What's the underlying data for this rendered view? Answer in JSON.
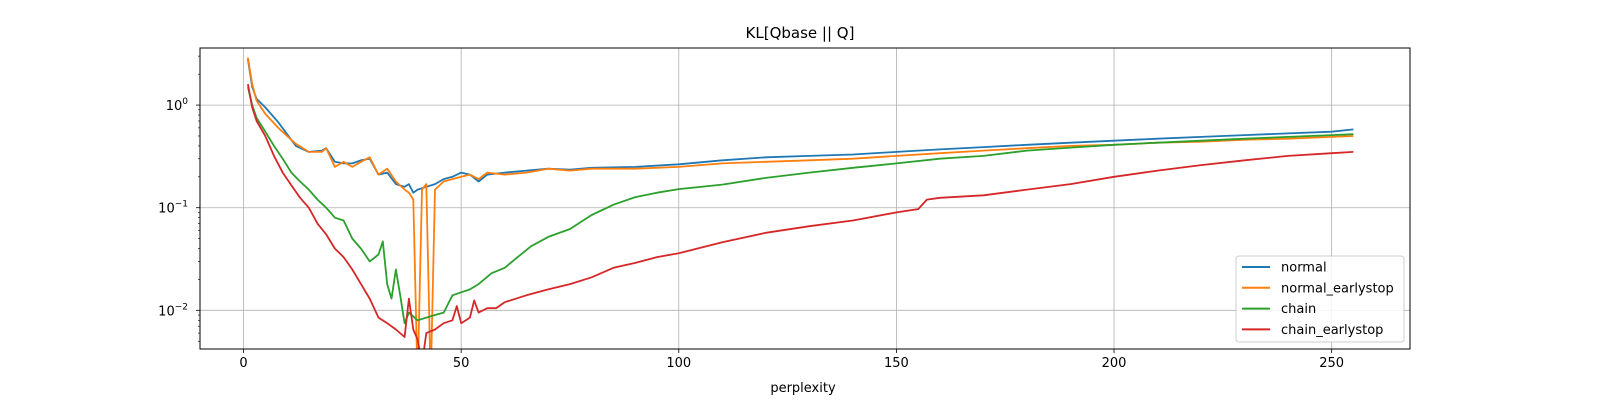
{
  "chart_data": {
    "type": "line",
    "title": "KL[Qbase || Q]",
    "xlabel": "perplexity",
    "ylabel": "",
    "xlim": [
      -10,
      268
    ],
    "ylim": [
      0.0042,
      3.6
    ],
    "yscale": "log",
    "xticks": [
      0,
      50,
      100,
      150,
      200,
      250
    ],
    "yticks": [
      {
        "value": 0.01,
        "base": "10",
        "exp": "−2"
      },
      {
        "value": 0.1,
        "base": "10",
        "exp": "−1"
      },
      {
        "value": 1,
        "base": "10",
        "exp": "0"
      }
    ],
    "grid": true,
    "legend_position": "lower-right",
    "series": [
      {
        "name": "normal",
        "color": "#1f77b4",
        "points": [
          [
            1,
            2.8
          ],
          [
            2,
            1.5
          ],
          [
            3,
            1.15
          ],
          [
            5,
            0.95
          ],
          [
            8,
            0.68
          ],
          [
            10,
            0.52
          ],
          [
            12,
            0.4
          ],
          [
            15,
            0.35
          ],
          [
            18,
            0.36
          ],
          [
            19,
            0.38
          ],
          [
            21,
            0.28
          ],
          [
            23,
            0.27
          ],
          [
            25,
            0.27
          ],
          [
            27,
            0.29
          ],
          [
            29,
            0.3
          ],
          [
            31,
            0.21
          ],
          [
            33,
            0.22
          ],
          [
            35,
            0.17
          ],
          [
            37,
            0.16
          ],
          [
            38,
            0.17
          ],
          [
            39,
            0.14
          ],
          [
            40,
            0.15
          ],
          [
            42,
            0.16
          ],
          [
            44,
            0.17
          ],
          [
            46,
            0.19
          ],
          [
            48,
            0.2
          ],
          [
            50,
            0.22
          ],
          [
            52,
            0.21
          ],
          [
            54,
            0.18
          ],
          [
            56,
            0.21
          ],
          [
            60,
            0.22
          ],
          [
            65,
            0.23
          ],
          [
            70,
            0.24
          ],
          [
            75,
            0.235
          ],
          [
            80,
            0.245
          ],
          [
            90,
            0.25
          ],
          [
            100,
            0.265
          ],
          [
            110,
            0.29
          ],
          [
            120,
            0.31
          ],
          [
            130,
            0.32
          ],
          [
            140,
            0.33
          ],
          [
            150,
            0.35
          ],
          [
            160,
            0.37
          ],
          [
            170,
            0.39
          ],
          [
            180,
            0.41
          ],
          [
            190,
            0.43
          ],
          [
            200,
            0.45
          ],
          [
            210,
            0.47
          ],
          [
            220,
            0.49
          ],
          [
            230,
            0.51
          ],
          [
            240,
            0.53
          ],
          [
            250,
            0.55
          ],
          [
            255,
            0.58
          ]
        ]
      },
      {
        "name": "normal_earlystop",
        "color": "#ff7f0e",
        "points": [
          [
            1,
            2.9
          ],
          [
            2,
            1.6
          ],
          [
            3,
            1.1
          ],
          [
            5,
            0.82
          ],
          [
            8,
            0.6
          ],
          [
            10,
            0.5
          ],
          [
            12,
            0.42
          ],
          [
            15,
            0.35
          ],
          [
            18,
            0.35
          ],
          [
            19,
            0.38
          ],
          [
            21,
            0.25
          ],
          [
            23,
            0.28
          ],
          [
            25,
            0.25
          ],
          [
            27,
            0.28
          ],
          [
            29,
            0.31
          ],
          [
            31,
            0.21
          ],
          [
            33,
            0.24
          ],
          [
            35,
            0.18
          ],
          [
            37,
            0.15
          ],
          [
            38,
            0.14
          ],
          [
            39,
            0.12
          ],
          [
            40,
            0.002
          ],
          [
            41,
            0.15
          ],
          [
            42,
            0.17
          ],
          [
            43,
            0.002
          ],
          [
            44,
            0.15
          ],
          [
            46,
            0.18
          ],
          [
            48,
            0.19
          ],
          [
            50,
            0.2
          ],
          [
            52,
            0.21
          ],
          [
            54,
            0.19
          ],
          [
            56,
            0.22
          ],
          [
            60,
            0.21
          ],
          [
            65,
            0.22
          ],
          [
            70,
            0.24
          ],
          [
            75,
            0.23
          ],
          [
            80,
            0.24
          ],
          [
            90,
            0.24
          ],
          [
            100,
            0.25
          ],
          [
            110,
            0.27
          ],
          [
            120,
            0.28
          ],
          [
            130,
            0.29
          ],
          [
            140,
            0.3
          ],
          [
            150,
            0.32
          ],
          [
            160,
            0.34
          ],
          [
            170,
            0.36
          ],
          [
            180,
            0.38
          ],
          [
            190,
            0.4
          ],
          [
            200,
            0.41
          ],
          [
            210,
            0.43
          ],
          [
            220,
            0.44
          ],
          [
            230,
            0.46
          ],
          [
            240,
            0.47
          ],
          [
            250,
            0.49
          ],
          [
            255,
            0.5
          ]
        ]
      },
      {
        "name": "chain",
        "color": "#2ca02c",
        "points": [
          [
            1,
            1.5
          ],
          [
            2,
            1.0
          ],
          [
            3,
            0.75
          ],
          [
            5,
            0.55
          ],
          [
            7,
            0.4
          ],
          [
            9,
            0.3
          ],
          [
            11,
            0.22
          ],
          [
            13,
            0.18
          ],
          [
            15,
            0.15
          ],
          [
            17,
            0.12
          ],
          [
            19,
            0.1
          ],
          [
            21,
            0.08
          ],
          [
            23,
            0.075
          ],
          [
            25,
            0.05
          ],
          [
            27,
            0.04
          ],
          [
            29,
            0.03
          ],
          [
            31,
            0.035
          ],
          [
            32,
            0.047
          ],
          [
            33,
            0.018
          ],
          [
            34,
            0.013
          ],
          [
            35,
            0.025
          ],
          [
            36,
            0.014
          ],
          [
            37,
            0.0075
          ],
          [
            38,
            0.0095
          ],
          [
            40,
            0.008
          ],
          [
            42,
            0.0085
          ],
          [
            44,
            0.009
          ],
          [
            46,
            0.0095
          ],
          [
            48,
            0.014
          ],
          [
            50,
            0.015
          ],
          [
            52,
            0.016
          ],
          [
            54,
            0.018
          ],
          [
            57,
            0.023
          ],
          [
            60,
            0.026
          ],
          [
            63,
            0.033
          ],
          [
            66,
            0.042
          ],
          [
            70,
            0.052
          ],
          [
            75,
            0.062
          ],
          [
            80,
            0.085
          ],
          [
            85,
            0.107
          ],
          [
            90,
            0.127
          ],
          [
            95,
            0.14
          ],
          [
            100,
            0.152
          ],
          [
            110,
            0.168
          ],
          [
            120,
            0.195
          ],
          [
            130,
            0.22
          ],
          [
            140,
            0.245
          ],
          [
            150,
            0.27
          ],
          [
            160,
            0.3
          ],
          [
            170,
            0.32
          ],
          [
            180,
            0.36
          ],
          [
            190,
            0.385
          ],
          [
            200,
            0.41
          ],
          [
            210,
            0.43
          ],
          [
            220,
            0.45
          ],
          [
            230,
            0.47
          ],
          [
            240,
            0.49
          ],
          [
            250,
            0.51
          ],
          [
            255,
            0.52
          ]
        ]
      },
      {
        "name": "chain_earlystop",
        "color": "#d62728",
        "points": [
          [
            1,
            1.6
          ],
          [
            2,
            0.95
          ],
          [
            3,
            0.7
          ],
          [
            5,
            0.5
          ],
          [
            7,
            0.32
          ],
          [
            9,
            0.22
          ],
          [
            11,
            0.165
          ],
          [
            13,
            0.125
          ],
          [
            15,
            0.1
          ],
          [
            17,
            0.07
          ],
          [
            19,
            0.055
          ],
          [
            21,
            0.04
          ],
          [
            23,
            0.033
          ],
          [
            25,
            0.025
          ],
          [
            27,
            0.018
          ],
          [
            29,
            0.013
          ],
          [
            31,
            0.0085
          ],
          [
            33,
            0.0075
          ],
          [
            35,
            0.0065
          ],
          [
            37,
            0.0055
          ],
          [
            38,
            0.013
          ],
          [
            39,
            0.0065
          ],
          [
            40,
            0.0052
          ],
          [
            41,
            0.003
          ],
          [
            42,
            0.006
          ],
          [
            44,
            0.0065
          ],
          [
            46,
            0.0075
          ],
          [
            48,
            0.008
          ],
          [
            49,
            0.011
          ],
          [
            50,
            0.0075
          ],
          [
            52,
            0.0085
          ],
          [
            53,
            0.0125
          ],
          [
            54,
            0.0095
          ],
          [
            56,
            0.0105
          ],
          [
            58,
            0.0105
          ],
          [
            60,
            0.012
          ],
          [
            65,
            0.014
          ],
          [
            70,
            0.016
          ],
          [
            75,
            0.018
          ],
          [
            80,
            0.021
          ],
          [
            85,
            0.026
          ],
          [
            90,
            0.029
          ],
          [
            95,
            0.033
          ],
          [
            100,
            0.036
          ],
          [
            110,
            0.046
          ],
          [
            120,
            0.057
          ],
          [
            130,
            0.066
          ],
          [
            140,
            0.075
          ],
          [
            150,
            0.09
          ],
          [
            155,
            0.097
          ],
          [
            157,
            0.12
          ],
          [
            160,
            0.125
          ],
          [
            170,
            0.132
          ],
          [
            180,
            0.15
          ],
          [
            190,
            0.17
          ],
          [
            200,
            0.2
          ],
          [
            210,
            0.23
          ],
          [
            220,
            0.26
          ],
          [
            230,
            0.29
          ],
          [
            240,
            0.32
          ],
          [
            250,
            0.34
          ],
          [
            255,
            0.35
          ]
        ]
      }
    ]
  }
}
